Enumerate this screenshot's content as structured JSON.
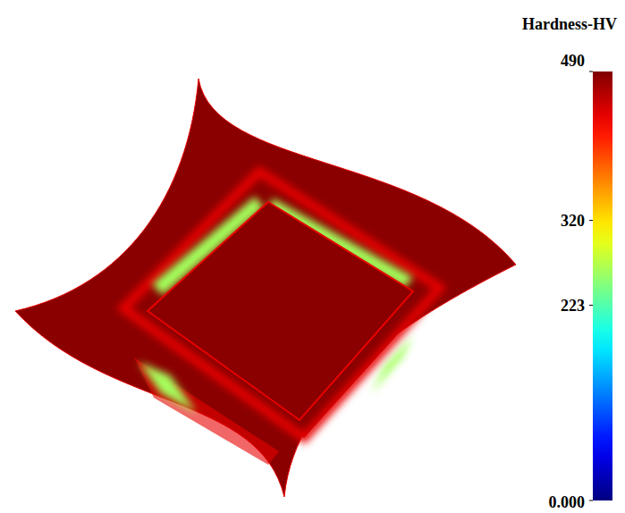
{
  "chart_data": {
    "type": "contour",
    "colorbar": {
      "title": "Hardness-HV",
      "range": [
        0,
        490
      ],
      "ticks": [
        490,
        320,
        223,
        {
          "value": 0,
          "label": "0.000"
        }
      ]
    },
    "regions": [
      {
        "value": 485
      },
      {
        "value": 440
      },
      {
        "value": 262
      }
    ]
  }
}
